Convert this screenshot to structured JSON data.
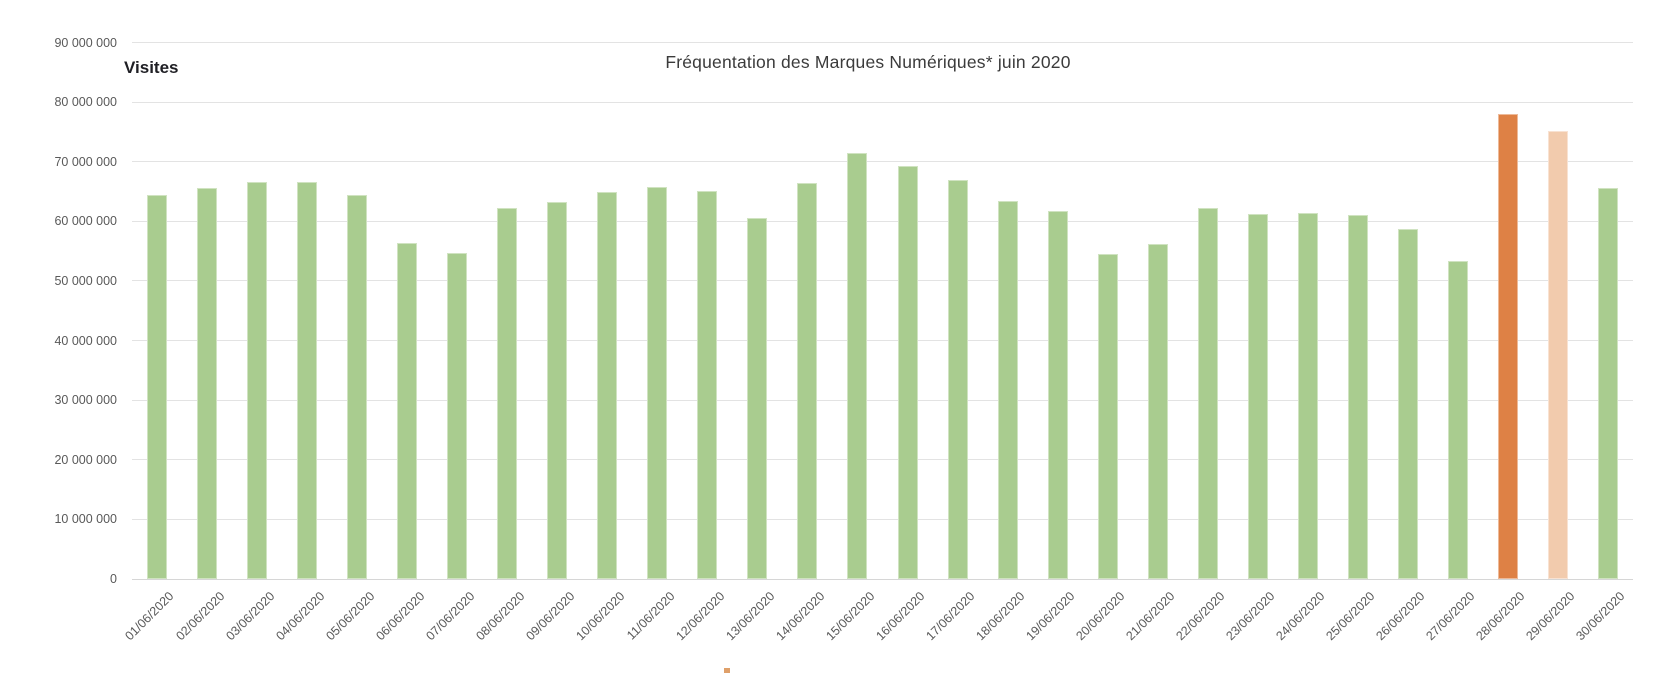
{
  "chart_data": {
    "type": "bar",
    "title": "Fréquentation des Marques Numériques* juin 2020",
    "ylabel": "Visites",
    "xlabel": "",
    "ylim": [
      0,
      90000000
    ],
    "y_tick_step": 10000000,
    "y_tick_labels_bottom_up": [
      "0",
      "10 000 000",
      "20 000 000",
      "30 000 000",
      "40 000 000",
      "50 000 000",
      "60 000 000",
      "70 000 000",
      "80 000 000",
      "90 000 000"
    ],
    "grid": true,
    "legend_position": "none",
    "categories": [
      "01/06/2020",
      "02/06/2020",
      "03/06/2020",
      "04/06/2020",
      "05/06/2020",
      "06/06/2020",
      "07/06/2020",
      "08/06/2020",
      "09/06/2020",
      "10/06/2020",
      "11/06/2020",
      "12/06/2020",
      "13/06/2020",
      "14/06/2020",
      "15/06/2020",
      "16/06/2020",
      "17/06/2020",
      "18/06/2020",
      "19/06/2020",
      "20/06/2020",
      "21/06/2020",
      "22/06/2020",
      "23/06/2020",
      "24/06/2020",
      "25/06/2020",
      "26/06/2020",
      "27/06/2020",
      "28/06/2020",
      "29/06/2020",
      "30/06/2020"
    ],
    "values": [
      64500000,
      65600000,
      66600000,
      66600000,
      64500000,
      56400000,
      54700000,
      62300000,
      63200000,
      64900000,
      65700000,
      65100000,
      60500000,
      66400000,
      71400000,
      69300000,
      67000000,
      63400000,
      61800000,
      54600000,
      56200000,
      62200000,
      61300000,
      61400000,
      61100000,
      58700000,
      53400000,
      78000000,
      75100000,
      65600000
    ],
    "bar_color_default": "#a9cc8f",
    "bar_color_overrides": [
      {
        "index": 27,
        "category": "28/06/2020",
        "color": "#de8145"
      },
      {
        "index": 28,
        "category": "29/06/2020",
        "color": "#f2cbad"
      }
    ],
    "legend_fragment_color": "#dfa06a"
  }
}
